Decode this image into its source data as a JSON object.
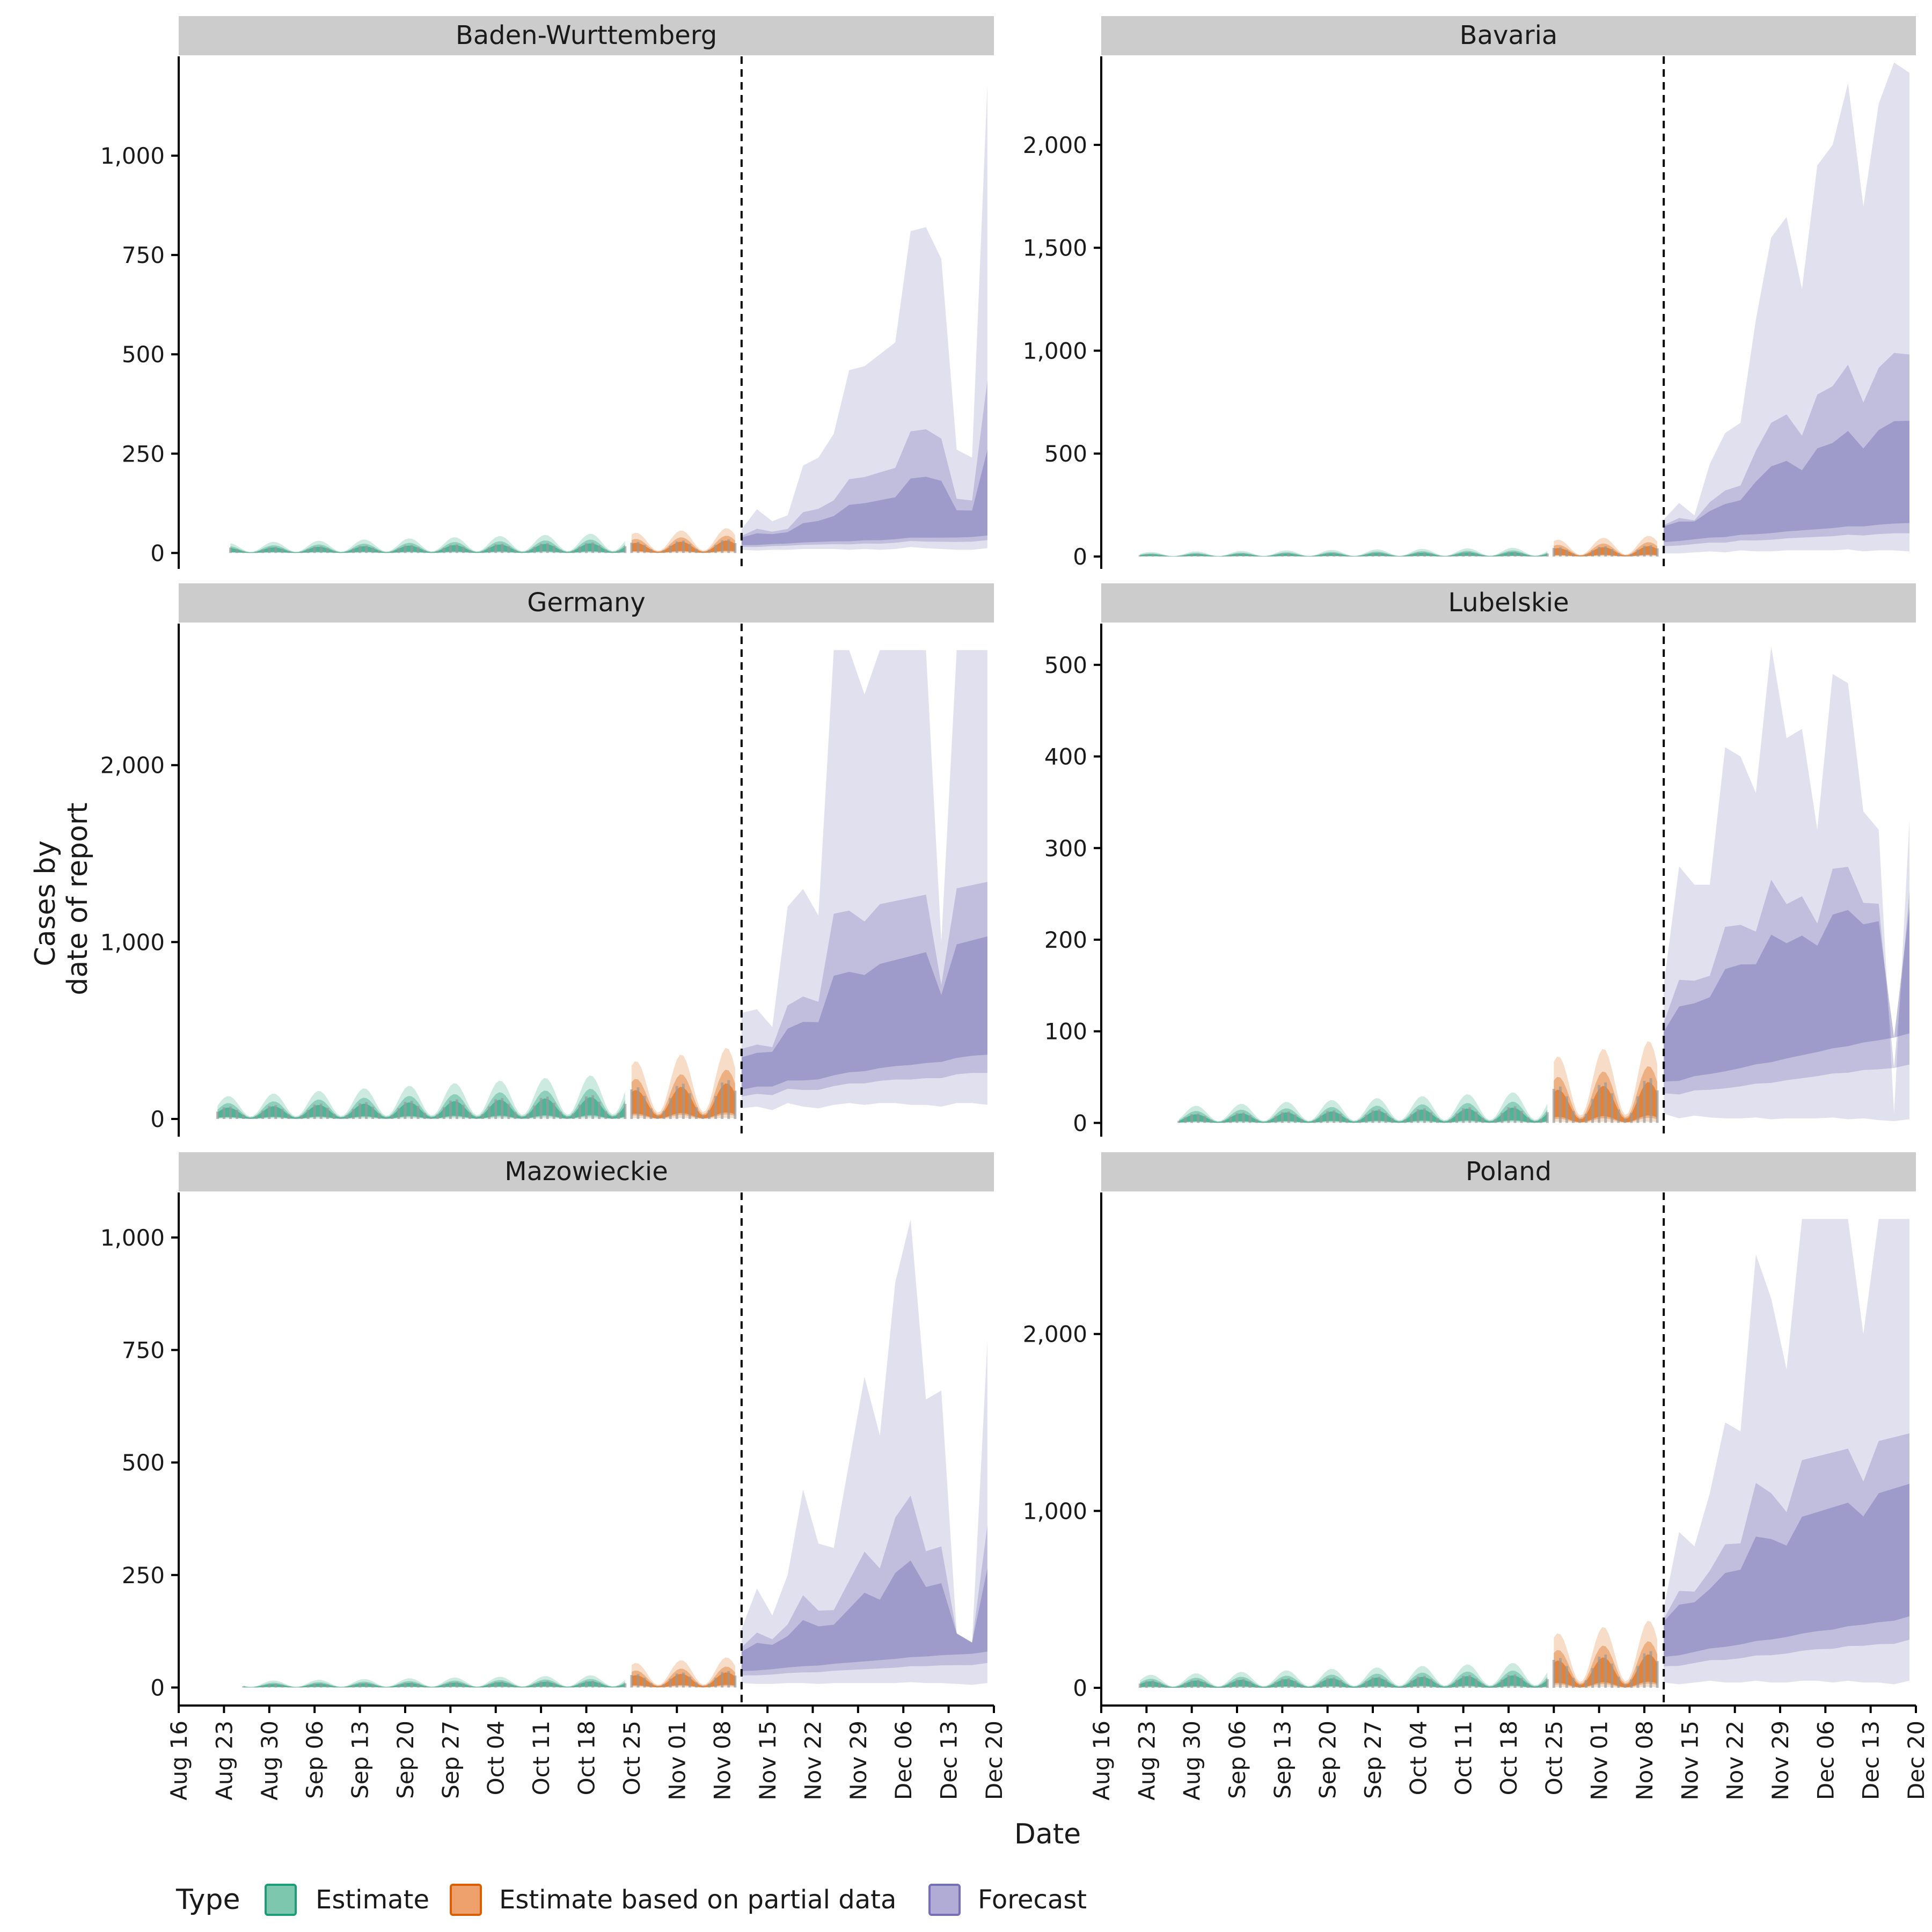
{
  "chart_data": {
    "type": "area",
    "xlabel": "Date",
    "ylabel_lines": [
      "Cases by",
      "date of report"
    ],
    "x_tick_labels": [
      "Aug 16",
      "Aug 23",
      "Aug 30",
      "Sep 06",
      "Sep 13",
      "Sep 20",
      "Sep 27",
      "Oct 04",
      "Oct 11",
      "Oct 18",
      "Oct 25",
      "Nov 01",
      "Nov 08",
      "Nov 15",
      "Nov 22",
      "Nov 29",
      "Dec 06",
      "Dec 13",
      "Dec 20"
    ],
    "x_range_days": [
      0,
      126
    ],
    "forecast_date_day": 87,
    "legend": {
      "title": "Type",
      "items": [
        {
          "label": "Estimate",
          "fill": "#7cc7ad",
          "stroke": "#1b9e77"
        },
        {
          "label": "Estimate based on partial data",
          "fill": "#eea16d",
          "stroke": "#d95f02"
        },
        {
          "label": "Forecast",
          "fill": "#b1acd6",
          "stroke": "#7570b3"
        }
      ]
    },
    "type_colors": {
      "estimate": "#1b9e77",
      "partial": "#d95f02",
      "forecast": "#7570b3"
    },
    "panels": [
      {
        "name": "Baden-Wurttemberg",
        "ylim": [
          -40,
          1250
        ],
        "yticks": [
          0,
          250,
          500,
          750,
          1000
        ],
        "ytick_labels": [
          "0",
          "250",
          "500",
          "750",
          "1,000"
        ],
        "est_start": 8,
        "est_level": 14,
        "partial_level": 28,
        "forecast_level": 35,
        "forecast_upper": [
          60,
          110,
          80,
          95,
          220,
          240,
          300,
          460,
          470,
          500,
          530,
          810,
          820,
          740,
          260,
          240,
          1180
        ],
        "forecast_lower": [
          8,
          6,
          8,
          8,
          10,
          10,
          10,
          8,
          10,
          8,
          10,
          15,
          12,
          10,
          8,
          8,
          12
        ]
      },
      {
        "name": "Bavaria",
        "ylim": [
          -60,
          2430
        ],
        "yticks": [
          0,
          500,
          1000,
          1500,
          2000
        ],
        "ytick_labels": [
          "0",
          "500",
          "1,000",
          "1,500",
          "2,000"
        ],
        "est_start": 6,
        "est_level": 12,
        "partial_level": 45,
        "forecast_level": 140,
        "forecast_upper": [
          180,
          260,
          200,
          450,
          600,
          650,
          1150,
          1550,
          1650,
          1300,
          1900,
          2000,
          2300,
          1700,
          2200,
          2400,
          2350
        ],
        "forecast_lower": [
          15,
          15,
          20,
          25,
          20,
          30,
          25,
          25,
          30,
          30,
          30,
          30,
          35,
          25,
          30,
          30,
          25
        ]
      },
      {
        "name": "Germany",
        "ylim": [
          -100,
          2800
        ],
        "yticks": [
          0,
          1000,
          2000
        ],
        "ytick_labels": [
          "0",
          "1,000",
          "2,000"
        ],
        "est_start": 6,
        "est_level": 70,
        "partial_level": 180,
        "forecast_level": 300,
        "forecast_upper": [
          600,
          620,
          520,
          1200,
          1300,
          1150,
          2650,
          2650,
          2400,
          2650,
          2650,
          2650,
          2650,
          1000,
          2650,
          2650,
          2650
        ],
        "forecast_lower": [
          60,
          70,
          50,
          90,
          70,
          60,
          80,
          90,
          80,
          90,
          90,
          80,
          80,
          70,
          90,
          90,
          80
        ]
      },
      {
        "name": "Lubelskie",
        "ylim": [
          -15,
          545
        ],
        "yticks": [
          0,
          100,
          200,
          300,
          400,
          500
        ],
        "ytick_labels": [
          "0",
          "100",
          "200",
          "300",
          "400",
          "500"
        ],
        "est_start": 12,
        "est_level": 10,
        "partial_level": 40,
        "forecast_level": 90,
        "forecast_upper": [
          150,
          280,
          260,
          260,
          410,
          400,
          360,
          520,
          420,
          430,
          320,
          490,
          480,
          340,
          320,
          10,
          330
        ],
        "forecast_lower": [
          10,
          5,
          8,
          6,
          5,
          5,
          6,
          4,
          5,
          5,
          5,
          6,
          4,
          5,
          3,
          2,
          4
        ]
      },
      {
        "name": "Mazowieckie",
        "ylim": [
          -40,
          1100
        ],
        "yticks": [
          0,
          250,
          500,
          750,
          1000
        ],
        "ytick_labels": [
          "0",
          "250",
          "500",
          "750",
          "1,000"
        ],
        "est_start": 10,
        "est_level": 8,
        "partial_level": 30,
        "forecast_level": 70,
        "forecast_upper": [
          130,
          220,
          160,
          250,
          440,
          320,
          310,
          500,
          690,
          560,
          900,
          1040,
          640,
          660,
          120,
          100,
          770
        ],
        "forecast_lower": [
          10,
          8,
          8,
          10,
          10,
          8,
          10,
          10,
          10,
          10,
          10,
          12,
          10,
          10,
          8,
          6,
          10
        ]
      },
      {
        "name": "Poland",
        "ylim": [
          -100,
          2800
        ],
        "yticks": [
          0,
          1000,
          2000
        ],
        "ytick_labels": [
          "0",
          "1,000",
          "2,000"
        ],
        "est_start": 6,
        "est_level": 40,
        "partial_level": 170,
        "forecast_level": 360,
        "forecast_upper": [
          450,
          880,
          800,
          1100,
          1500,
          1450,
          2450,
          2200,
          1800,
          2650,
          2650,
          2650,
          2650,
          2000,
          2650,
          2650,
          2650
        ],
        "forecast_lower": [
          30,
          20,
          30,
          40,
          30,
          30,
          40,
          30,
          30,
          40,
          40,
          30,
          40,
          30,
          30,
          20,
          40
        ]
      }
    ]
  }
}
